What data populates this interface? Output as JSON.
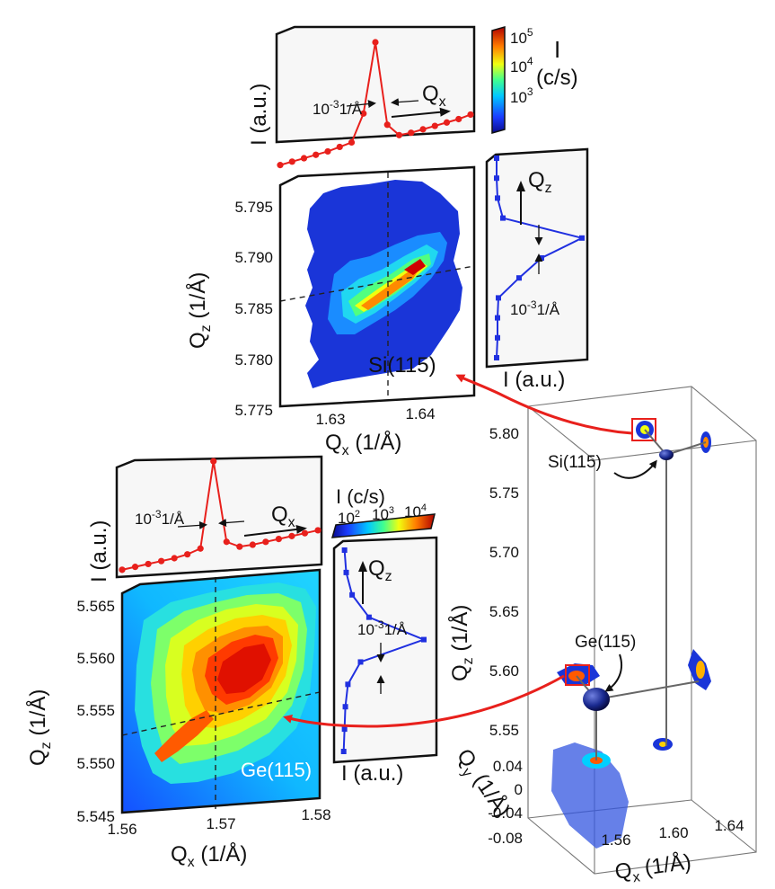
{
  "chart_data": [
    {
      "id": "si-map",
      "type": "heatmap",
      "title": "",
      "xlabel": "Q_x (1/Å)",
      "ylabel": "Q_z (1/Å)",
      "xlim": [
        1.625,
        1.645
      ],
      "ylim": [
        5.775,
        5.797
      ],
      "x_ticks": [
        "1.63",
        "1.64"
      ],
      "y_ticks": [
        "5.775",
        "5.780",
        "5.785",
        "5.790",
        "5.795"
      ],
      "annotation": "Si(115)",
      "peak": {
        "qx": 1.6365,
        "qz": 5.7865
      },
      "colorbar": {
        "label": "I",
        "unit": "(c/s)",
        "ticks": [
          "10^5",
          "10^4",
          "10^3"
        ]
      },
      "profile_x": {
        "ylabel": "I (a.u.)",
        "arrow_label": "Q_x",
        "width_label": "10^-3 1/Å",
        "values": [
          0.02,
          0.03,
          0.04,
          0.05,
          0.06,
          0.08,
          0.1,
          0.35,
          1.0,
          0.2,
          0.08,
          0.08,
          0.09,
          0.1,
          0.11,
          0.12,
          0.14
        ]
      },
      "profile_z": {
        "xlabel": "I (a.u.)",
        "arrow_label": "Q_z",
        "width_label": "10^-3 1/Å",
        "values": [
          0.05,
          0.06,
          0.06,
          0.07,
          0.3,
          0.55,
          1.0,
          0.12,
          0.06,
          0.05,
          0.05
        ]
      }
    },
    {
      "id": "ge-map",
      "type": "heatmap",
      "title": "",
      "xlabel": "Q_x (1/Å)",
      "ylabel": "Q_z (1/Å)",
      "xlim": [
        1.56,
        1.58
      ],
      "ylim": [
        5.545,
        5.567
      ],
      "x_ticks": [
        "1.56",
        "1.57",
        "1.58"
      ],
      "y_ticks": [
        "5.545",
        "5.550",
        "5.555",
        "5.560",
        "5.565"
      ],
      "annotation": "Ge(115)",
      "peak": {
        "qx": 1.5688,
        "qz": 5.5545
      },
      "colorbar": {
        "label": "I (c/s)",
        "ticks": [
          "10^2",
          "10^3",
          "10^4"
        ]
      },
      "profile_x": {
        "ylabel": "I (a.u.)",
        "arrow_label": "Q_x",
        "width_label": "10^-3 1/Å",
        "values": [
          0.02,
          0.03,
          0.04,
          0.05,
          0.06,
          0.08,
          0.12,
          1.0,
          0.15,
          0.08,
          0.08,
          0.09,
          0.1,
          0.11,
          0.12,
          0.13
        ]
      },
      "profile_z": {
        "xlabel": "I (a.u.)",
        "arrow_label": "Q_z",
        "width_label": "10^-3 1/Å",
        "values": [
          0.05,
          0.06,
          0.07,
          0.1,
          0.25,
          1.0,
          0.35,
          0.15,
          0.08,
          0.06
        ]
      }
    },
    {
      "id": "3d-map",
      "type": "scatter",
      "title": "",
      "xlabel": "Q_x (1/Å)",
      "ylabel": "Q_y (1/Å)",
      "zlabel": "Q_z (1/Å)",
      "x_ticks": [
        "1.56",
        "1.60",
        "1.64"
      ],
      "y_ticks": [
        "0.04",
        "0",
        "-0.04",
        "-0.08"
      ],
      "z_ticks": [
        "5.80",
        "5.75",
        "5.70",
        "5.65",
        "5.60",
        "5.55"
      ],
      "peaks": [
        {
          "label": "Si(115)",
          "qx": 1.637,
          "qy": 0.0,
          "qz": 5.787
        },
        {
          "label": "Ge(115)",
          "qx": 1.569,
          "qy": 0.0,
          "qz": 5.555
        }
      ]
    }
  ],
  "labels": {
    "si_profile_x_ylabel": "I (a.u.)",
    "si_qx_arrow": "Q",
    "si_qx_sub": "x",
    "si_width_a_base": "10",
    "si_width_a_exp": "-3",
    "si_width_a_unit": "1/Å",
    "si_cbar_I": "I",
    "si_cbar_unit": "(c/s)",
    "si_cbar_t1_base": "10",
    "si_cbar_t1_exp": "5",
    "si_cbar_t2_base": "10",
    "si_cbar_t2_exp": "4",
    "si_cbar_t3_base": "10",
    "si_cbar_t3_exp": "3",
    "si_qz_arrow": "Q",
    "si_qz_sub": "z",
    "si_width_b_base": "10",
    "si_width_b_exp": "-3",
    "si_width_b_unit": "1/Å",
    "si_profile_z_xlabel": "I (a.u.)",
    "si_map_ylabel_Q": "Q",
    "si_map_ylabel_sub": "z",
    "si_map_ylabel_unit": " (1/Å)",
    "si_map_xlabel_Q": "Q",
    "si_map_xlabel_sub": "x",
    "si_map_xlabel_unit": " (1/Å)",
    "si_annotation": "Si(115)",
    "ge_profile_x_ylabel": "I (a.u.)",
    "ge_width_a_base": "10",
    "ge_width_a_exp": "-3",
    "ge_width_a_unit": "1/Å",
    "ge_qx_arrow": "Q",
    "ge_qx_sub": "x",
    "ge_cbar_label": "I (c/s)",
    "ge_cbar_t1_base": "10",
    "ge_cbar_t1_exp": "2",
    "ge_cbar_t2_base": "10",
    "ge_cbar_t2_exp": "3",
    "ge_cbar_t3_base": "10",
    "ge_cbar_t3_exp": "4",
    "ge_qz_arrow": "Q",
    "ge_qz_sub": "z",
    "ge_width_b_base": "10",
    "ge_width_b_exp": "-3",
    "ge_width_b_unit": "1/Å",
    "ge_profile_z_xlabel": "I (a.u.)",
    "ge_map_ylabel_Q": "Q",
    "ge_map_ylabel_sub": "z",
    "ge_map_ylabel_unit": " (1/Å)",
    "ge_map_xlabel_Q": "Q",
    "ge_map_xlabel_sub": "x",
    "ge_map_xlabel_unit": " (1/Å)",
    "ge_annotation": "Ge(115)",
    "d3_si_label": "Si(115)",
    "d3_ge_label": "Ge(115)",
    "d3_qz_Q": "Q",
    "d3_qz_sub": "z",
    "d3_qz_unit": " (1/Å)",
    "d3_qy_Q": "Q",
    "d3_qy_sub": "y",
    "d3_qy_unit": " (1/Å)",
    "d3_qx_Q": "Q",
    "d3_qx_sub": "x",
    "d3_qx_unit": " (1/Å)"
  },
  "colors": {
    "profile_x": "#e8201c",
    "profile_z": "#2030e0",
    "arrow": "#e8201c",
    "map_bg": "#1a35d8"
  }
}
